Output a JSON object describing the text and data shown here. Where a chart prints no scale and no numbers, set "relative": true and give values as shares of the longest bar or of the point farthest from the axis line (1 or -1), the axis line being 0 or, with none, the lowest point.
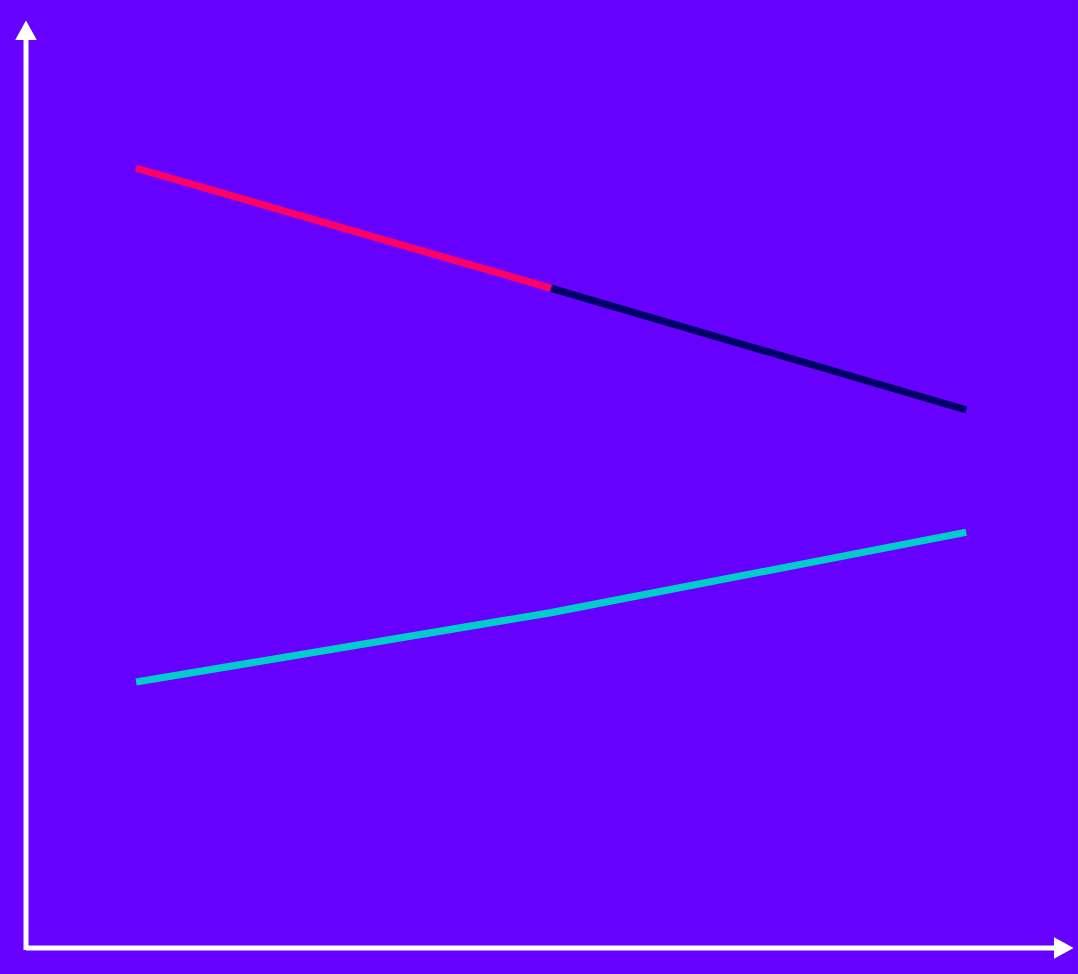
{
  "chart_data": {
    "type": "line",
    "relative": true,
    "categories": [
      null,
      null,
      null
    ],
    "series": [
      {
        "color": "#ff0066",
        "values": [
          1,
          0.846,
          null
        ]
      },
      {
        "color": "#000066",
        "values": [
          null,
          0.846,
          0.69
        ]
      },
      {
        "color": "#00cccc",
        "values": [
          0.341,
          0.43,
          0.533
        ]
      }
    ]
  }
}
